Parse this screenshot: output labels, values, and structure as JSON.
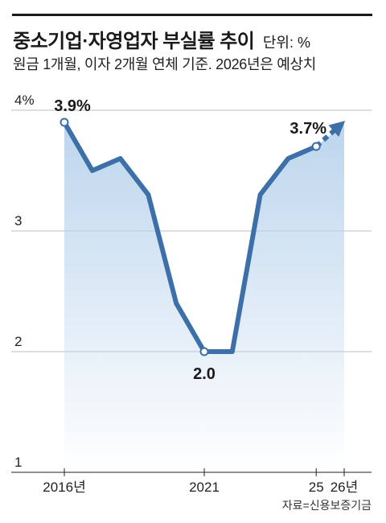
{
  "header": {
    "title": "중소기업·자영업자 부실률 추이",
    "unit": "단위: %",
    "subtitle": "원금 1개월, 이자 2개월 연체 기준. 2026년은 예상치"
  },
  "source": "자료=신용보증기금",
  "colors": {
    "line": "#3d6fa8",
    "area_top": "#b9d3ec",
    "grid": "#bdbdbd",
    "axis": "#222222"
  },
  "chart_data": {
    "type": "line",
    "title": "중소기업·자영업자 부실률 추이",
    "ylim": [
      1,
      4
    ],
    "y_ticks": [
      "4%",
      "3",
      "2",
      "1"
    ],
    "x_tick_labels": [
      "2016년",
      "2021",
      "25",
      "26년"
    ],
    "x": [
      2016,
      2017,
      2018,
      2019,
      2020,
      2021,
      2022,
      2023,
      2024,
      2025,
      2026
    ],
    "values": [
      3.9,
      3.5,
      3.6,
      3.3,
      2.4,
      2.0,
      2.0,
      3.3,
      3.6,
      3.7,
      3.89
    ],
    "projected_from_index": 9,
    "data_labels": [
      {
        "index": 0,
        "text": "3.9%"
      },
      {
        "index": 5,
        "text": "2.0"
      },
      {
        "index": 9,
        "text": "3.7%"
      }
    ],
    "grid": true
  }
}
